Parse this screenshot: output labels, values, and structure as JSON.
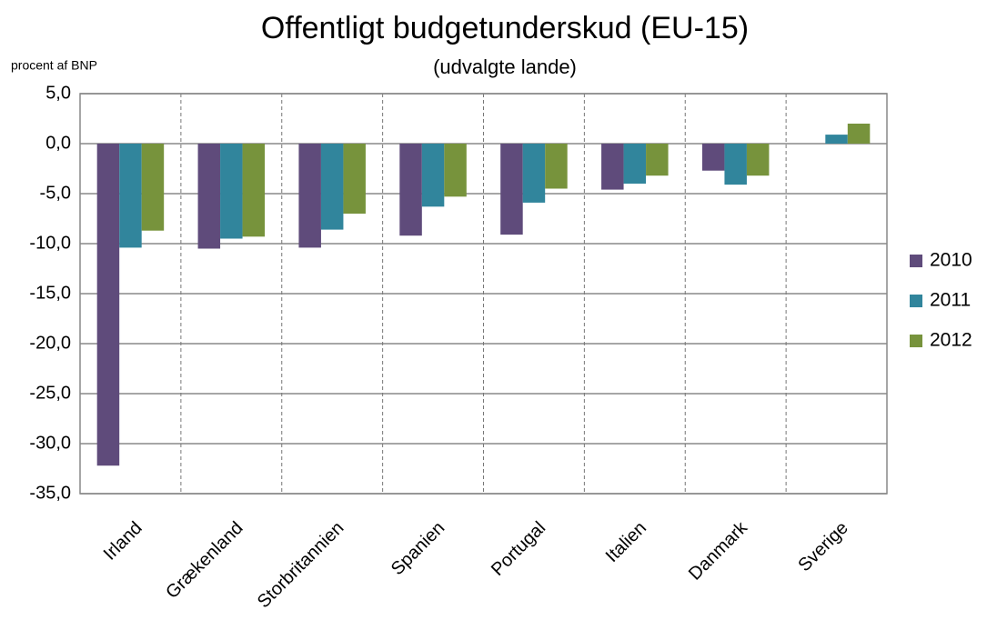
{
  "chart_data": {
    "type": "bar",
    "title": "Offentligt budgetunderskud (EU-15)",
    "subtitle": "(udvalgte lande)",
    "y_label": "procent af BNP",
    "categories": [
      "Irland",
      "Grækenland",
      "Storbritannien",
      "Spanien",
      "Portugal",
      "Italien",
      "Danmark",
      "Sverige"
    ],
    "series": [
      {
        "name": "2010",
        "color": "#5f4b7b",
        "values": [
          -32.2,
          -10.5,
          -10.4,
          -9.2,
          -9.1,
          -4.6,
          -2.7,
          0
        ]
      },
      {
        "name": "2011",
        "color": "#31859c",
        "values": [
          -10.4,
          -9.5,
          -8.6,
          -6.3,
          -5.9,
          -4.0,
          -4.1,
          0.9
        ]
      },
      {
        "name": "2012",
        "color": "#77933c",
        "values": [
          -8.7,
          -9.3,
          -7.0,
          -5.3,
          -4.5,
          -3.2,
          -3.2,
          2.0
        ]
      }
    ],
    "ylim": [
      -35,
      5
    ],
    "yticks": [
      {
        "value": -35,
        "label": "-35,0"
      },
      {
        "value": -30,
        "label": "-30,0"
      },
      {
        "value": -25,
        "label": "-25,0"
      },
      {
        "value": -20,
        "label": "-20,0"
      },
      {
        "value": -15,
        "label": "-15,0"
      },
      {
        "value": -10,
        "label": "-10,0"
      },
      {
        "value": -5,
        "label": "-5,0"
      },
      {
        "value": 0,
        "label": "0,0"
      },
      {
        "value": 5,
        "label": "5,0"
      }
    ],
    "grid": true,
    "legend": "right"
  }
}
